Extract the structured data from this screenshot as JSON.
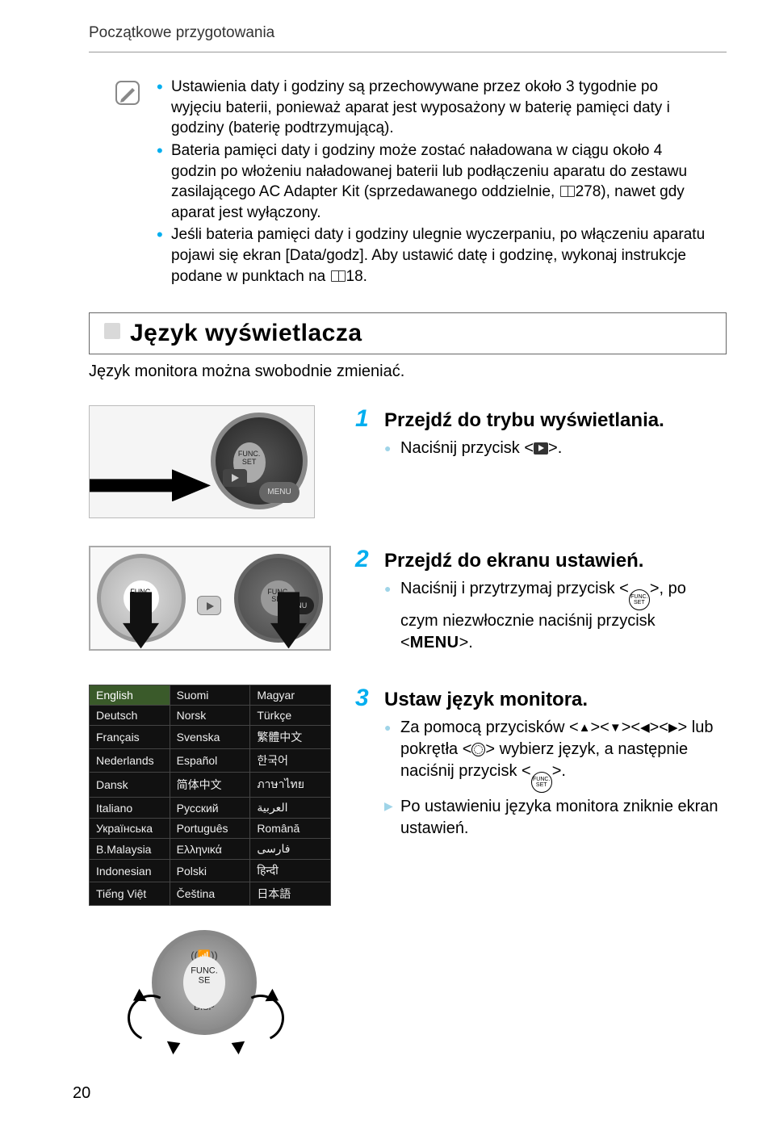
{
  "header": "Początkowe przygotowania",
  "notes": [
    "Ustawienia daty i godziny są przechowywane przez około 3 tygodnie po wyjęciu baterii, ponieważ aparat jest wyposażony w baterię pamięci daty i godziny (baterię podtrzymującą).",
    "Bateria pamięci daty i godziny może zostać naładowana w ciągu około 4 godzin po włożeniu naładowanej baterii lub podłączeniu aparatu do zestawu zasilającego AC Adapter Kit (sprzedawanego oddzielnie, 📖278), nawet gdy aparat jest wyłączony.",
    "Jeśli bateria pamięci daty i godziny ulegnie wyczerpaniu, po włączeniu aparatu pojawi się ekran [Data/godz]. Aby ustawić datę i godzinę, wykonaj instrukcje podane w punktach na 📖18."
  ],
  "note_page_refs": {
    "ref1": "278",
    "ref2": "18"
  },
  "section": {
    "title": "Język wyświetlacza",
    "subtitle": "Język monitora można swobodnie zmieniać."
  },
  "steps": [
    {
      "num": "1",
      "title": "Przejdź do trybu wyświetlania.",
      "body_plain": "Naciśnij przycisk <▶>."
    },
    {
      "num": "2",
      "title": "Przejdź do ekranu ustawień.",
      "body_plain": "Naciśnij i przytrzymaj przycisk <FUNC/SET>, po czym niezwłocznie naciśnij przycisk <MENU>."
    },
    {
      "num": "3",
      "title": "Ustaw język monitora.",
      "body_line1": "Za pomocą przycisków <▲><▼><◀><▶> lub pokrętła <●> wybierz język, a następnie naciśnij przycisk <FUNC/SET>.",
      "body_line2": "Po ustawieniu języka monitora zniknie ekran ustawień."
    }
  ],
  "languages": [
    [
      "English",
      "Suomi",
      "Magyar"
    ],
    [
      "Deutsch",
      "Norsk",
      "Türkçe"
    ],
    [
      "Français",
      "Svenska",
      "繁體中文"
    ],
    [
      "Nederlands",
      "Español",
      "한국어"
    ],
    [
      "Dansk",
      "简体中文",
      "ภาษาไทย"
    ],
    [
      "Italiano",
      "Русский",
      "العربية"
    ],
    [
      "Українська",
      "Português",
      "Română"
    ],
    [
      "B.Malaysia",
      "Ελληνικά",
      "فارسی"
    ],
    [
      "Indonesian",
      "Polski",
      "हिन्दी"
    ],
    [
      "Tiếng Việt",
      "Čeština",
      "日本語"
    ]
  ],
  "lang_selected": "English",
  "func_label_top": "FUNC.",
  "func_label_bottom": "SET",
  "menu_label": "MENU",
  "page_number": "20",
  "colors": {
    "accent": "#00aeef",
    "bullet_soft": "#9fd4e8",
    "text": "#000000",
    "bg": "#ffffff"
  }
}
